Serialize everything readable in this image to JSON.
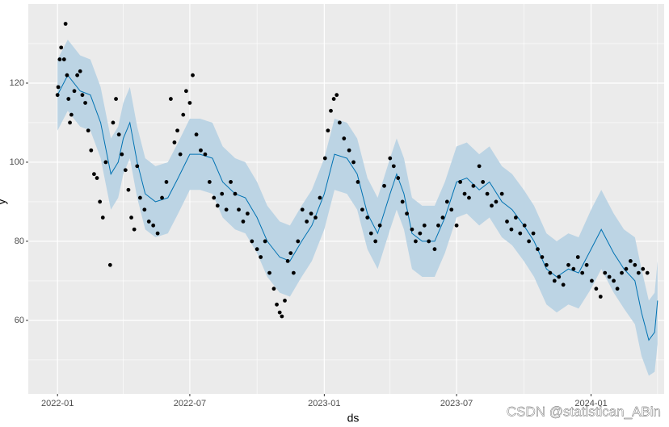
{
  "chart_data": {
    "type": "scatter",
    "xlabel": "ds",
    "ylabel": "y",
    "watermark": "CSDN @statistican_ABin",
    "xlim": [
      "2021-11-22",
      "2024-04-10"
    ],
    "ylim": [
      41.4,
      140
    ],
    "xticks": [
      "2022-01",
      "2022-07",
      "2023-01",
      "2023-07",
      "2024-01"
    ],
    "xminor": [
      "2022-04",
      "2022-10",
      "2023-04",
      "2023-10",
      "2024-04"
    ],
    "yticks": [
      60,
      80,
      100,
      120
    ],
    "yminor": [
      50,
      70,
      90,
      110,
      130
    ],
    "grid": true,
    "point_color": "#000000",
    "line_color": "#0072b2",
    "band_color": "#bcd4e4",
    "points": {
      "x": [
        "2022-01-01",
        "2022-01-02",
        "2022-01-04",
        "2022-01-06",
        "2022-01-12",
        "2022-01-10",
        "2022-01-14",
        "2022-01-16",
        "2022-01-18",
        "2022-01-20",
        "2022-01-24",
        "2022-01-28",
        "2022-02-01",
        "2022-02-04",
        "2022-02-08",
        "2022-02-12",
        "2022-02-16",
        "2022-02-20",
        "2022-02-24",
        "2022-02-28",
        "2022-03-04",
        "2022-03-14",
        "2022-03-08",
        "2022-03-18",
        "2022-03-22",
        "2022-03-26",
        "2022-03-30",
        "2022-04-04",
        "2022-04-08",
        "2022-04-12",
        "2022-04-16",
        "2022-04-20",
        "2022-04-24",
        "2022-04-30",
        "2022-05-06",
        "2022-05-12",
        "2022-05-18",
        "2022-05-24",
        "2022-05-30",
        "2022-06-05",
        "2022-06-10",
        "2022-06-14",
        "2022-06-18",
        "2022-06-22",
        "2022-06-26",
        "2022-07-01",
        "2022-07-05",
        "2022-07-10",
        "2022-07-16",
        "2022-07-22",
        "2022-07-28",
        "2022-08-03",
        "2022-08-08",
        "2022-08-14",
        "2022-08-20",
        "2022-08-26",
        "2022-09-01",
        "2022-09-06",
        "2022-09-12",
        "2022-09-18",
        "2022-09-24",
        "2022-10-01",
        "2022-10-06",
        "2022-10-12",
        "2022-10-18",
        "2022-10-24",
        "2022-10-28",
        "2022-11-01",
        "2022-11-04",
        "2022-11-08",
        "2022-11-12",
        "2022-11-16",
        "2022-11-20",
        "2022-11-26",
        "2022-12-02",
        "2022-12-08",
        "2022-12-14",
        "2022-12-20",
        "2022-12-26",
        "2023-01-02",
        "2023-01-06",
        "2023-01-10",
        "2023-01-14",
        "2023-01-18",
        "2023-01-22",
        "2023-01-28",
        "2023-02-04",
        "2023-02-10",
        "2023-02-16",
        "2023-02-22",
        "2023-03-01",
        "2023-03-06",
        "2023-03-12",
        "2023-03-18",
        "2023-03-24",
        "2023-04-01",
        "2023-04-06",
        "2023-04-12",
        "2023-04-18",
        "2023-04-24",
        "2023-05-01",
        "2023-05-06",
        "2023-05-12",
        "2023-05-18",
        "2023-05-24",
        "2023-06-01",
        "2023-06-06",
        "2023-06-12",
        "2023-06-18",
        "2023-06-24",
        "2023-07-01",
        "2023-07-06",
        "2023-07-12",
        "2023-07-18",
        "2023-07-24",
        "2023-08-01",
        "2023-08-06",
        "2023-08-12",
        "2023-08-18",
        "2023-08-24",
        "2023-09-01",
        "2023-09-08",
        "2023-09-14",
        "2023-09-20",
        "2023-09-26",
        "2023-10-02",
        "2023-10-08",
        "2023-10-14",
        "2023-10-20",
        "2023-10-26",
        "2023-11-01",
        "2023-11-06",
        "2023-11-12",
        "2023-11-18",
        "2023-11-24",
        "2023-12-01",
        "2023-12-08",
        "2023-12-14",
        "2023-12-20",
        "2023-12-26",
        "2024-01-02",
        "2024-01-08",
        "2024-01-14",
        "2024-01-20",
        "2024-01-26",
        "2024-02-01",
        "2024-02-06",
        "2024-02-12",
        "2024-02-18",
        "2024-02-24",
        "2024-03-01",
        "2024-03-06",
        "2024-03-12",
        "2024-03-18"
      ],
      "values": [
        117,
        119,
        126,
        129,
        135,
        126,
        122,
        116,
        110,
        112,
        118,
        122,
        123,
        117,
        115,
        108,
        103,
        97,
        96,
        90,
        86,
        74,
        100,
        110,
        116,
        107,
        102,
        98,
        93,
        86,
        83,
        99,
        91,
        88,
        85,
        84,
        82,
        91,
        95,
        116,
        105,
        108,
        102,
        112,
        118,
        115,
        122,
        107,
        103,
        102,
        95,
        91,
        89,
        92,
        88,
        95,
        92,
        88,
        85,
        87,
        80,
        78,
        76,
        80,
        72,
        68,
        64,
        62,
        61,
        65,
        75,
        77,
        72,
        80,
        88,
        85,
        87,
        86,
        91,
        101,
        108,
        113,
        116,
        117,
        110,
        106,
        103,
        100,
        95,
        88,
        86,
        82,
        80,
        84,
        94,
        101,
        99,
        96,
        90,
        87,
        83,
        80,
        82,
        84,
        80,
        78,
        84,
        86,
        90,
        88,
        84,
        95,
        92,
        91,
        94,
        99,
        95,
        92,
        89,
        90,
        92,
        85,
        83,
        86,
        82,
        84,
        80,
        82,
        78,
        76,
        74,
        72,
        70,
        71,
        69,
        74,
        73,
        76,
        72,
        74,
        70,
        68,
        66,
        72,
        71,
        70,
        68,
        72,
        73,
        75,
        74,
        72,
        73,
        72
      ]
    },
    "forecast": {
      "x": [
        "2022-01-01",
        "2022-01-15",
        "2022-02-01",
        "2022-02-15",
        "2022-03-01",
        "2022-03-15",
        "2022-03-25",
        "2022-04-01",
        "2022-04-10",
        "2022-04-20",
        "2022-05-01",
        "2022-05-15",
        "2022-06-01",
        "2022-06-15",
        "2022-07-01",
        "2022-07-15",
        "2022-08-01",
        "2022-08-15",
        "2022-09-01",
        "2022-09-15",
        "2022-10-01",
        "2022-10-15",
        "2022-11-01",
        "2022-11-15",
        "2022-12-01",
        "2022-12-15",
        "2023-01-01",
        "2023-01-15",
        "2023-02-01",
        "2023-02-15",
        "2023-03-01",
        "2023-03-15",
        "2023-04-01",
        "2023-04-10",
        "2023-04-20",
        "2023-05-01",
        "2023-05-15",
        "2023-06-01",
        "2023-06-15",
        "2023-07-01",
        "2023-07-15",
        "2023-08-01",
        "2023-08-15",
        "2023-09-01",
        "2023-09-15",
        "2023-10-01",
        "2023-10-15",
        "2023-11-01",
        "2023-11-15",
        "2023-12-01",
        "2023-12-15",
        "2024-01-01",
        "2024-01-15",
        "2024-02-01",
        "2024-02-15",
        "2024-03-01",
        "2024-03-10",
        "2024-03-20",
        "2024-03-28",
        "2024-04-01"
      ],
      "yhat": [
        117,
        122,
        118,
        117,
        110,
        97,
        100,
        106,
        110,
        100,
        92,
        90,
        91,
        96,
        102,
        102,
        101,
        95,
        92,
        91,
        86,
        80,
        76,
        75,
        80,
        84,
        92,
        102,
        101,
        97,
        87,
        82,
        92,
        97,
        92,
        82,
        80,
        80,
        86,
        95,
        96,
        93,
        95,
        90,
        88,
        84,
        80,
        73,
        71,
        73,
        72,
        78,
        83,
        77,
        73,
        70,
        62,
        55,
        57,
        65
      ],
      "lower": [
        108,
        113,
        109,
        108,
        101,
        88,
        91,
        97,
        101,
        91,
        83,
        81,
        82,
        87,
        93,
        93,
        92,
        86,
        83,
        82,
        77,
        71,
        67,
        66,
        71,
        75,
        83,
        93,
        92,
        88,
        78,
        73,
        83,
        88,
        83,
        73,
        71,
        71,
        77,
        86,
        87,
        84,
        86,
        81,
        79,
        75,
        71,
        64,
        62,
        64,
        63,
        68,
        73,
        67,
        63,
        59,
        51,
        46,
        47,
        54
      ],
      "upper": [
        126,
        131,
        127,
        126,
        119,
        106,
        109,
        115,
        119,
        109,
        101,
        99,
        100,
        105,
        111,
        111,
        110,
        104,
        101,
        100,
        95,
        89,
        85,
        84,
        89,
        93,
        101,
        111,
        110,
        106,
        96,
        91,
        101,
        106,
        101,
        91,
        89,
        89,
        95,
        104,
        105,
        102,
        104,
        99,
        97,
        93,
        89,
        82,
        80,
        82,
        81,
        88,
        93,
        87,
        83,
        81,
        73,
        65,
        67,
        75
      ]
    }
  }
}
